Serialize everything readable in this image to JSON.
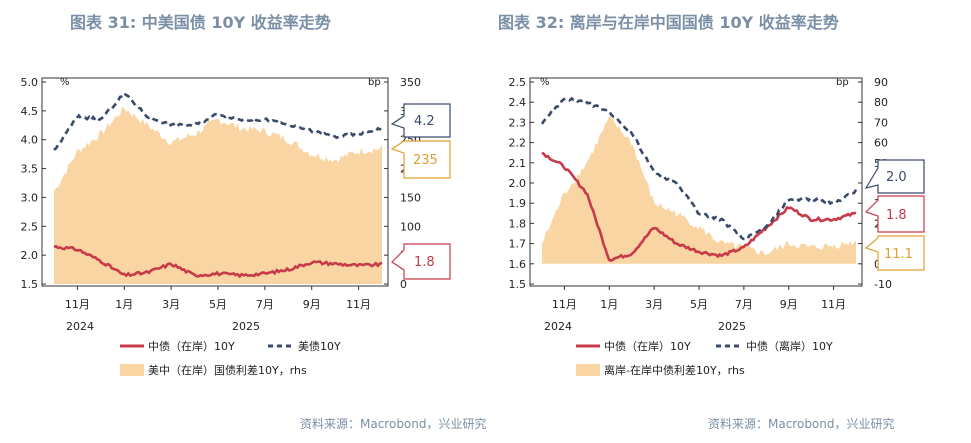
{
  "charts": [
    {
      "title": "图表 31: 中美国债 10Y 收益率走势",
      "source": "资料来源：Macrobond，兴业研究",
      "left_unit": "%",
      "right_unit": "bp",
      "x_ticks": [
        "11月",
        "1月",
        "3月",
        "5月",
        "7月",
        "9月",
        "11月"
      ],
      "x_years": [
        "2024",
        "2025"
      ],
      "left_ticks": [
        "5.0",
        "4.5",
        "4.0",
        "3.5",
        "3.0",
        "2.5",
        "2.0",
        "1.5"
      ],
      "right_ticks": [
        "350",
        "300",
        "250",
        "200",
        "150",
        "100",
        "50",
        "0"
      ],
      "legend": [
        "中债（在岸）10Y",
        "美债10Y",
        "美中（在岸）国债利差10Y，rhs"
      ],
      "callouts": [
        "4.2",
        "235",
        "1.8"
      ],
      "colors": {
        "line1": "#c73a4a",
        "line2": "#3a4a6b",
        "area": "#f9d5a3",
        "c1": "#3a4a6b",
        "c2": "#e0a030",
        "c3": "#c73a4a"
      }
    },
    {
      "title": "图表 32: 离岸与在岸中国国债 10Y 收益率走势",
      "source": "资料来源：Macrobond，兴业研究",
      "left_unit": "%",
      "right_unit": "bp",
      "x_ticks": [
        "11月",
        "1月",
        "3月",
        "5月",
        "7月",
        "9月",
        "11月"
      ],
      "x_years": [
        "2024",
        "2025"
      ],
      "left_ticks": [
        "2.5",
        "2.4",
        "2.3",
        "2.2",
        "2.1",
        "2.0",
        "1.9",
        "1.8",
        "1.7",
        "1.6",
        "1.5"
      ],
      "right_ticks": [
        "90",
        "80",
        "70",
        "60",
        "50",
        "40",
        "30",
        "20",
        "10",
        "0",
        "-10"
      ],
      "legend": [
        "中债（在岸）10Y",
        "中债（离岸）10Y",
        "离岸-在岸中债利差10Y，rhs"
      ],
      "callouts": [
        "2.0",
        "1.8",
        "11.1"
      ],
      "colors": {
        "line1": "#c73a4a",
        "line2": "#3a4a6b",
        "area": "#f9d5a3",
        "c1": "#3a4a6b",
        "c2": "#c73a4a",
        "c3": "#e0a030"
      }
    }
  ],
  "chart_data": [
    {
      "type": "line",
      "title": "图表 31: 中美国债 10Y 收益率走势",
      "x": [
        "2024-10",
        "2024-11",
        "2024-12",
        "2025-01",
        "2025-02",
        "2025-03",
        "2025-04",
        "2025-05",
        "2025-06",
        "2025-07",
        "2025-08",
        "2025-09",
        "2025-10",
        "2025-11",
        "2025-12"
      ],
      "ylim": [
        1.5,
        5.0
      ],
      "y2lim": [
        0,
        350
      ],
      "series": [
        {
          "name": "中债（在岸）10Y",
          "axis": "left",
          "values": [
            2.15,
            2.1,
            1.9,
            1.65,
            1.7,
            1.85,
            1.65,
            1.68,
            1.65,
            1.68,
            1.75,
            1.88,
            1.85,
            1.82,
            1.84
          ]
        },
        {
          "name": "美债10Y",
          "axis": "left",
          "values": [
            3.8,
            4.4,
            4.35,
            4.8,
            4.4,
            4.25,
            4.25,
            4.45,
            4.35,
            4.35,
            4.25,
            4.15,
            4.05,
            4.1,
            4.2
          ]
        },
        {
          "name": "美中（在岸）国债利差10Y，rhs",
          "axis": "right",
          "type": "area",
          "values": [
            160,
            230,
            260,
            305,
            275,
            245,
            260,
            285,
            270,
            265,
            250,
            225,
            215,
            230,
            235
          ]
        }
      ]
    },
    {
      "type": "line",
      "title": "图表 32: 离岸与在岸中国国债 10Y 收益率走势",
      "x": [
        "2024-10",
        "2024-11",
        "2024-12",
        "2025-01",
        "2025-02",
        "2025-03",
        "2025-04",
        "2025-05",
        "2025-06",
        "2025-07",
        "2025-08",
        "2025-09",
        "2025-10",
        "2025-11",
        "2025-12"
      ],
      "ylim": [
        1.5,
        2.5
      ],
      "y2lim": [
        -10,
        90
      ],
      "series": [
        {
          "name": "中债（在岸）10Y",
          "axis": "left",
          "values": [
            2.15,
            2.08,
            1.95,
            1.62,
            1.65,
            1.78,
            1.7,
            1.66,
            1.64,
            1.68,
            1.78,
            1.88,
            1.82,
            1.82,
            1.85
          ]
        },
        {
          "name": "中债（离岸）10Y",
          "axis": "left",
          "values": [
            2.3,
            2.42,
            2.4,
            2.35,
            2.25,
            2.05,
            2.0,
            1.85,
            1.82,
            1.72,
            1.78,
            1.92,
            1.92,
            1.9,
            1.96
          ]
        },
        {
          "name": "离岸-在岸中债利差10Y，rhs",
          "axis": "right",
          "type": "area",
          "values": [
            10,
            35,
            50,
            72,
            60,
            30,
            25,
            18,
            10,
            8,
            5,
            10,
            8,
            9,
            11
          ]
        }
      ]
    }
  ]
}
